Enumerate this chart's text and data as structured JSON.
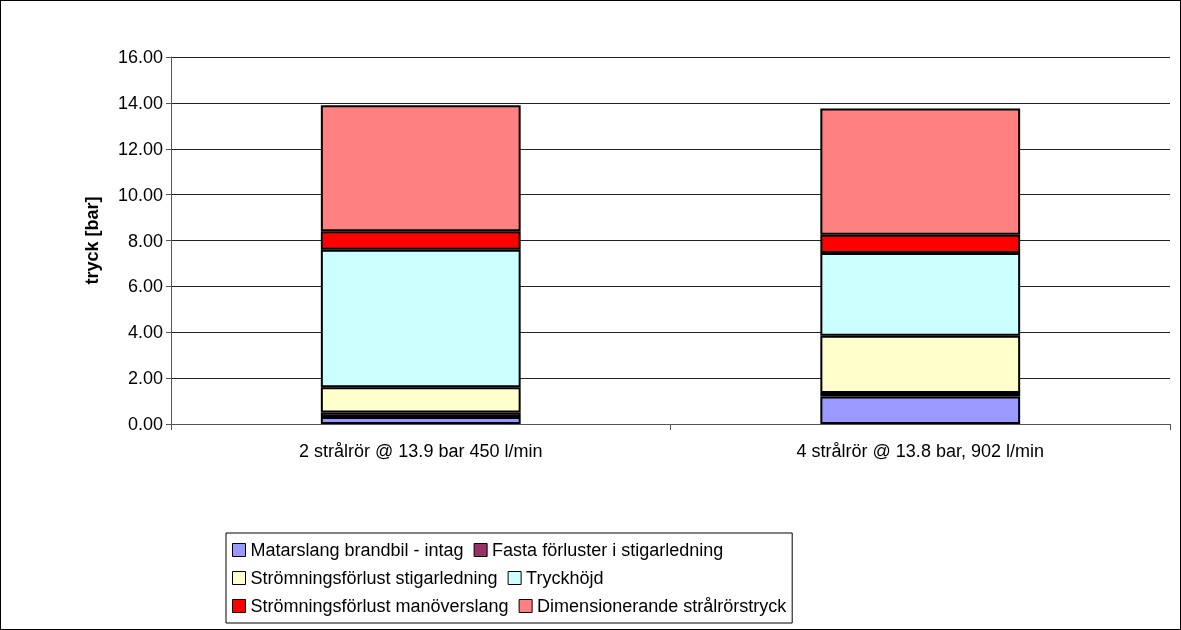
{
  "chart_data": {
    "type": "bar",
    "stacked": true,
    "ylabel": "tryck [bar]",
    "categories": [
      "2 strålrör @ 13.9 bar 450 l/min",
      "4 strålrör @ 13.8 bar, 902 l/min"
    ],
    "series": [
      {
        "name": "Matarslang brandbil - intag",
        "color": "#9999ff",
        "values": [
          0.3,
          1.2
        ]
      },
      {
        "name": "Fasta förluster i stigarledning",
        "color": "#993366",
        "values": [
          0.2,
          0.15
        ]
      },
      {
        "name": "Strömningsförlust stigarledning",
        "color": "#ffffcc",
        "values": [
          1.1,
          2.5
        ]
      },
      {
        "name": "Tryckhöjd",
        "color": "#ccffff",
        "values": [
          6.0,
          3.6
        ]
      },
      {
        "name": "Strömningsförlust manöverslang",
        "color": "#ff0000",
        "values": [
          0.8,
          0.8
        ]
      },
      {
        "name": "Dimensionerande strålrörstryck",
        "color": "#ff8080",
        "values": [
          5.5,
          5.5
        ]
      }
    ],
    "ylim": [
      0,
      16
    ],
    "yticks": [
      {
        "value": 0,
        "label": "0.00"
      },
      {
        "value": 2,
        "label": "2.00"
      },
      {
        "value": 4,
        "label": "4.00"
      },
      {
        "value": 6,
        "label": "6.00"
      },
      {
        "value": 8,
        "label": "8.00"
      },
      {
        "value": 10,
        "label": "10.00"
      },
      {
        "value": 12,
        "label": "12.00"
      },
      {
        "value": 14,
        "label": "14.00"
      },
      {
        "value": 16,
        "label": "16.00"
      }
    ],
    "grid": "y",
    "legend": "bottom"
  }
}
